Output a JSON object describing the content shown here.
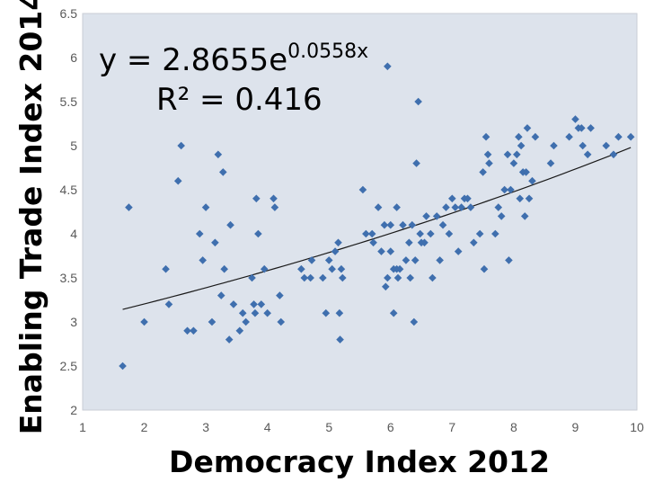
{
  "chart_data": {
    "type": "scatter",
    "xlabel": "Democracy Index 2012",
    "ylabel": "Enabling Trade Index 2014",
    "xlim": [
      1,
      10
    ],
    "ylim": [
      2,
      6.5
    ],
    "x_ticks": [
      "1",
      "2",
      "3",
      "4",
      "5",
      "6",
      "7",
      "8",
      "9",
      "10"
    ],
    "y_ticks": [
      "2",
      "2.5",
      "3",
      "3.5",
      "4",
      "4.5",
      "5",
      "5.5",
      "6",
      "6.5"
    ],
    "grid": false,
    "background_color": "#dde3ec",
    "marker_color": "#3f6fae",
    "trendline": {
      "type": "exponential",
      "a": 2.8655,
      "b": 0.0558,
      "equation_prefix": "y = 2.8655e",
      "equation_exponent": "0.0558x",
      "r_squared_text": "R² = 0.416"
    },
    "points": [
      [
        1.65,
        2.5
      ],
      [
        1.75,
        4.3
      ],
      [
        2.0,
        3.0
      ],
      [
        2.35,
        3.6
      ],
      [
        2.4,
        3.2
      ],
      [
        2.55,
        4.6
      ],
      [
        2.6,
        5.0
      ],
      [
        2.7,
        2.9
      ],
      [
        2.8,
        2.9
      ],
      [
        2.9,
        4.0
      ],
      [
        2.95,
        3.7
      ],
      [
        3.0,
        4.3
      ],
      [
        3.1,
        3.0
      ],
      [
        3.15,
        3.9
      ],
      [
        3.2,
        4.9
      ],
      [
        3.25,
        3.3
      ],
      [
        3.28,
        4.7
      ],
      [
        3.3,
        3.6
      ],
      [
        3.38,
        2.8
      ],
      [
        3.4,
        4.1
      ],
      [
        3.45,
        3.2
      ],
      [
        3.55,
        2.9
      ],
      [
        3.6,
        3.1
      ],
      [
        3.65,
        3.0
      ],
      [
        3.75,
        3.5
      ],
      [
        3.78,
        3.2
      ],
      [
        3.8,
        3.1
      ],
      [
        3.82,
        4.4
      ],
      [
        3.85,
        4.0
      ],
      [
        3.9,
        3.2
      ],
      [
        3.95,
        3.6
      ],
      [
        4.0,
        3.1
      ],
      [
        4.1,
        4.4
      ],
      [
        4.12,
        4.3
      ],
      [
        4.2,
        3.3
      ],
      [
        4.22,
        3.0
      ],
      [
        4.55,
        3.6
      ],
      [
        4.6,
        3.5
      ],
      [
        4.7,
        3.5
      ],
      [
        4.72,
        3.7
      ],
      [
        4.9,
        3.5
      ],
      [
        4.95,
        3.1
      ],
      [
        5.0,
        3.7
      ],
      [
        5.05,
        3.6
      ],
      [
        5.1,
        3.8
      ],
      [
        5.15,
        3.9
      ],
      [
        5.17,
        3.1
      ],
      [
        5.18,
        2.8
      ],
      [
        5.2,
        3.6
      ],
      [
        5.22,
        3.5
      ],
      [
        5.55,
        4.5
      ],
      [
        5.6,
        4.0
      ],
      [
        5.7,
        4.0
      ],
      [
        5.72,
        3.9
      ],
      [
        5.8,
        4.3
      ],
      [
        5.85,
        3.8
      ],
      [
        5.9,
        4.1
      ],
      [
        5.92,
        3.4
      ],
      [
        5.95,
        3.5
      ],
      [
        5.95,
        5.9
      ],
      [
        6.0,
        3.8
      ],
      [
        6.0,
        4.1
      ],
      [
        6.05,
        3.1
      ],
      [
        6.05,
        3.6
      ],
      [
        6.1,
        3.6
      ],
      [
        6.12,
        3.5
      ],
      [
        6.1,
        4.3
      ],
      [
        6.15,
        3.6
      ],
      [
        6.2,
        4.1
      ],
      [
        6.25,
        3.7
      ],
      [
        6.3,
        3.9
      ],
      [
        6.32,
        3.5
      ],
      [
        6.35,
        4.1
      ],
      [
        6.38,
        3.0
      ],
      [
        6.4,
        3.7
      ],
      [
        6.42,
        4.8
      ],
      [
        6.45,
        5.5
      ],
      [
        6.48,
        4.0
      ],
      [
        6.5,
        3.9
      ],
      [
        6.55,
        3.9
      ],
      [
        6.58,
        4.2
      ],
      [
        6.65,
        4.0
      ],
      [
        6.68,
        3.5
      ],
      [
        6.75,
        4.2
      ],
      [
        6.8,
        3.7
      ],
      [
        6.85,
        4.1
      ],
      [
        6.9,
        4.3
      ],
      [
        6.95,
        4.0
      ],
      [
        7.0,
        4.4
      ],
      [
        7.05,
        4.3
      ],
      [
        7.1,
        3.8
      ],
      [
        7.15,
        4.3
      ],
      [
        7.2,
        4.4
      ],
      [
        7.25,
        4.4
      ],
      [
        7.3,
        4.3
      ],
      [
        7.35,
        3.9
      ],
      [
        7.45,
        4.0
      ],
      [
        7.5,
        4.7
      ],
      [
        7.52,
        3.6
      ],
      [
        7.55,
        5.1
      ],
      [
        7.58,
        4.9
      ],
      [
        7.6,
        4.8
      ],
      [
        7.7,
        4.0
      ],
      [
        7.75,
        4.3
      ],
      [
        7.8,
        4.2
      ],
      [
        7.85,
        4.5
      ],
      [
        7.9,
        4.9
      ],
      [
        7.92,
        3.7
      ],
      [
        7.95,
        4.5
      ],
      [
        8.0,
        4.8
      ],
      [
        8.05,
        4.9
      ],
      [
        8.08,
        5.1
      ],
      [
        8.1,
        4.4
      ],
      [
        8.12,
        5.0
      ],
      [
        8.15,
        4.7
      ],
      [
        8.18,
        4.2
      ],
      [
        8.2,
        4.7
      ],
      [
        8.22,
        5.2
      ],
      [
        8.25,
        4.4
      ],
      [
        8.3,
        4.6
      ],
      [
        8.35,
        5.1
      ],
      [
        8.6,
        4.8
      ],
      [
        8.65,
        5.0
      ],
      [
        8.9,
        5.1
      ],
      [
        9.0,
        5.3
      ],
      [
        9.05,
        5.2
      ],
      [
        9.1,
        5.2
      ],
      [
        9.12,
        5.0
      ],
      [
        9.2,
        4.9
      ],
      [
        9.25,
        5.2
      ],
      [
        9.5,
        5.0
      ],
      [
        9.62,
        4.9
      ],
      [
        9.7,
        5.1
      ],
      [
        9.9,
        5.1
      ]
    ]
  }
}
